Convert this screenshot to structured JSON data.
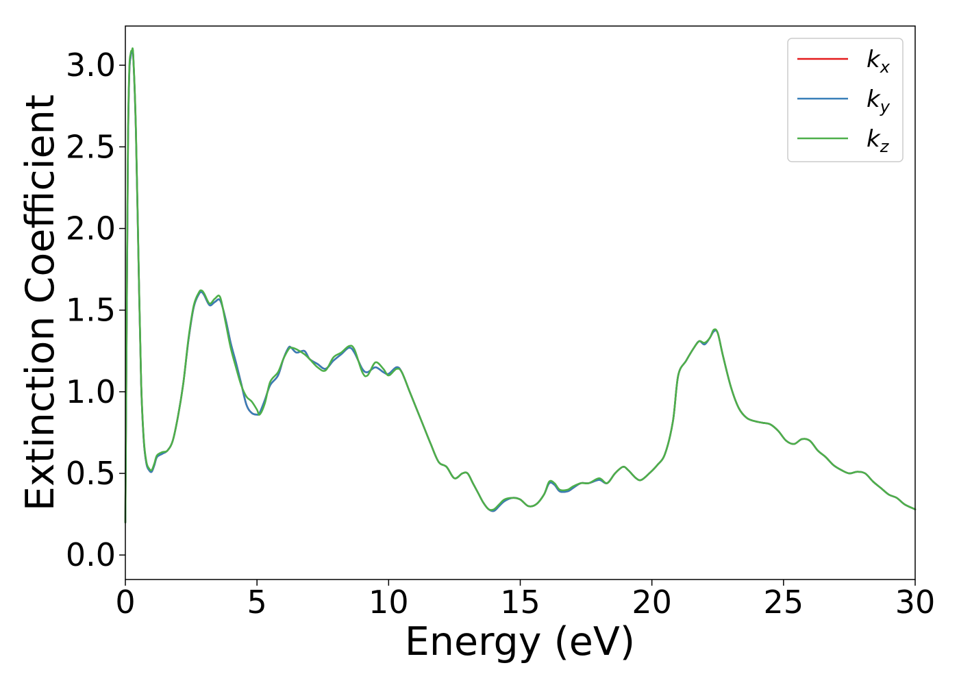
{
  "chart_data": {
    "type": "line",
    "xlabel": "Energy (eV)",
    "ylabel": "Extinction Coefficient",
    "xlim": [
      0,
      30
    ],
    "ylim": [
      -0.15,
      3.24
    ],
    "xticks": [
      0,
      5,
      10,
      15,
      20,
      25,
      30
    ],
    "xtick_labels": [
      "0",
      "5",
      "10",
      "15",
      "20",
      "25",
      "30"
    ],
    "yticks": [
      0.0,
      0.5,
      1.0,
      1.5,
      2.0,
      2.5,
      3.0
    ],
    "ytick_labels": [
      "0.0",
      "0.5",
      "1.0",
      "1.5",
      "2.0",
      "2.5",
      "3.0"
    ],
    "grid": false,
    "legend_position": "top-right",
    "series": [
      {
        "name": "k",
        "subscript": "x",
        "color": "#e41a1c",
        "x": [
          0,
          0.05,
          0.1,
          0.15,
          0.2,
          0.25,
          0.3,
          0.4,
          0.5,
          0.6,
          0.7,
          0.8,
          0.9,
          1.0,
          1.1,
          1.2,
          1.4,
          1.6,
          1.8,
          2.0,
          2.2,
          2.4,
          2.6,
          2.8,
          2.9,
          3.0,
          3.2,
          3.4,
          3.6,
          3.8,
          4.0,
          4.2,
          4.4,
          4.6,
          4.8,
          5.0,
          5.1,
          5.3,
          5.5,
          5.8,
          6.0,
          6.2,
          6.3,
          6.5,
          6.8,
          7.0,
          7.3,
          7.6,
          7.9,
          8.2,
          8.5,
          8.7,
          9.0,
          9.2,
          9.5,
          9.8,
          10.0,
          10.3,
          10.5,
          10.8,
          11.0,
          11.3,
          11.6,
          11.9,
          12.2,
          12.5,
          12.8,
          13.0,
          13.2,
          13.4,
          13.6,
          13.8,
          14.0,
          14.2,
          14.4,
          14.7,
          15.0,
          15.3,
          15.6,
          15.9,
          16.1,
          16.3,
          16.5,
          16.8,
          17.0,
          17.3,
          17.6,
          18.0,
          18.3,
          18.6,
          18.9,
          19.1,
          19.4,
          19.6,
          19.9,
          20.2,
          20.5,
          20.8,
          21.0,
          21.3,
          21.6,
          21.8,
          22.0,
          22.2,
          22.35,
          22.5,
          22.7,
          23.0,
          23.3,
          23.6,
          23.9,
          24.2,
          24.5,
          24.8,
          25.1,
          25.4,
          25.7,
          26.0,
          26.3,
          26.6,
          26.9,
          27.2,
          27.5,
          27.8,
          28.1,
          28.4,
          28.7,
          29.0,
          29.3,
          29.6,
          30.0
        ],
        "y": [
          0.2,
          1.4,
          2.5,
          2.95,
          3.05,
          3.08,
          3.05,
          2.6,
          1.8,
          1.05,
          0.7,
          0.56,
          0.52,
          0.51,
          0.55,
          0.6,
          0.62,
          0.64,
          0.7,
          0.85,
          1.05,
          1.32,
          1.52,
          1.6,
          1.61,
          1.59,
          1.53,
          1.55,
          1.56,
          1.45,
          1.3,
          1.18,
          1.05,
          0.92,
          0.87,
          0.86,
          0.87,
          0.95,
          1.04,
          1.1,
          1.2,
          1.27,
          1.27,
          1.24,
          1.25,
          1.2,
          1.17,
          1.14,
          1.19,
          1.23,
          1.27,
          1.24,
          1.14,
          1.12,
          1.15,
          1.12,
          1.11,
          1.15,
          1.12,
          1.0,
          0.92,
          0.8,
          0.68,
          0.57,
          0.54,
          0.47,
          0.5,
          0.5,
          0.44,
          0.38,
          0.32,
          0.28,
          0.27,
          0.3,
          0.33,
          0.35,
          0.34,
          0.3,
          0.31,
          0.37,
          0.44,
          0.43,
          0.39,
          0.39,
          0.41,
          0.44,
          0.44,
          0.46,
          0.44,
          0.5,
          0.54,
          0.52,
          0.47,
          0.46,
          0.5,
          0.55,
          0.62,
          0.82,
          1.1,
          1.19,
          1.27,
          1.31,
          1.29,
          1.33,
          1.37,
          1.36,
          1.22,
          1.03,
          0.9,
          0.84,
          0.82,
          0.81,
          0.8,
          0.76,
          0.7,
          0.68,
          0.71,
          0.7,
          0.64,
          0.6,
          0.55,
          0.52,
          0.5,
          0.51,
          0.5,
          0.45,
          0.41,
          0.37,
          0.35,
          0.31,
          0.28
        ]
      },
      {
        "name": "k",
        "subscript": "y",
        "color": "#377eb8",
        "x": [
          0,
          0.05,
          0.1,
          0.15,
          0.2,
          0.25,
          0.3,
          0.4,
          0.5,
          0.6,
          0.7,
          0.8,
          0.9,
          1.0,
          1.1,
          1.2,
          1.4,
          1.6,
          1.8,
          2.0,
          2.2,
          2.4,
          2.6,
          2.8,
          2.9,
          3.0,
          3.2,
          3.4,
          3.6,
          3.8,
          4.0,
          4.2,
          4.4,
          4.6,
          4.8,
          5.0,
          5.1,
          5.3,
          5.5,
          5.8,
          6.0,
          6.2,
          6.3,
          6.5,
          6.8,
          7.0,
          7.3,
          7.6,
          7.9,
          8.2,
          8.5,
          8.7,
          9.0,
          9.2,
          9.5,
          9.8,
          10.0,
          10.3,
          10.5,
          10.8,
          11.0,
          11.3,
          11.6,
          11.9,
          12.2,
          12.5,
          12.8,
          13.0,
          13.2,
          13.4,
          13.6,
          13.8,
          14.0,
          14.2,
          14.4,
          14.7,
          15.0,
          15.3,
          15.6,
          15.9,
          16.1,
          16.3,
          16.5,
          16.8,
          17.0,
          17.3,
          17.6,
          18.0,
          18.3,
          18.6,
          18.9,
          19.1,
          19.4,
          19.6,
          19.9,
          20.2,
          20.5,
          20.8,
          21.0,
          21.3,
          21.6,
          21.8,
          22.0,
          22.2,
          22.35,
          22.5,
          22.7,
          23.0,
          23.3,
          23.6,
          23.9,
          24.2,
          24.5,
          24.8,
          25.1,
          25.4,
          25.7,
          26.0,
          26.3,
          26.6,
          26.9,
          27.2,
          27.5,
          27.8,
          28.1,
          28.4,
          28.7,
          29.0,
          29.3,
          29.6,
          30.0
        ],
        "y": [
          0.2,
          1.4,
          2.5,
          2.95,
          3.05,
          3.08,
          3.05,
          2.6,
          1.8,
          1.05,
          0.7,
          0.56,
          0.52,
          0.51,
          0.55,
          0.6,
          0.62,
          0.64,
          0.7,
          0.85,
          1.05,
          1.32,
          1.52,
          1.6,
          1.61,
          1.59,
          1.53,
          1.55,
          1.56,
          1.45,
          1.3,
          1.18,
          1.05,
          0.92,
          0.87,
          0.86,
          0.87,
          0.95,
          1.04,
          1.1,
          1.2,
          1.27,
          1.27,
          1.24,
          1.25,
          1.2,
          1.17,
          1.14,
          1.19,
          1.23,
          1.27,
          1.24,
          1.14,
          1.12,
          1.15,
          1.12,
          1.11,
          1.15,
          1.12,
          1.0,
          0.92,
          0.8,
          0.68,
          0.57,
          0.54,
          0.47,
          0.5,
          0.5,
          0.44,
          0.38,
          0.32,
          0.28,
          0.27,
          0.3,
          0.33,
          0.35,
          0.34,
          0.3,
          0.31,
          0.37,
          0.44,
          0.43,
          0.39,
          0.39,
          0.41,
          0.44,
          0.44,
          0.46,
          0.44,
          0.5,
          0.54,
          0.52,
          0.47,
          0.46,
          0.5,
          0.55,
          0.62,
          0.82,
          1.1,
          1.19,
          1.27,
          1.31,
          1.29,
          1.33,
          1.37,
          1.36,
          1.22,
          1.03,
          0.9,
          0.84,
          0.82,
          0.81,
          0.8,
          0.76,
          0.7,
          0.68,
          0.71,
          0.7,
          0.64,
          0.6,
          0.55,
          0.52,
          0.5,
          0.51,
          0.5,
          0.45,
          0.41,
          0.37,
          0.35,
          0.31,
          0.28
        ]
      },
      {
        "name": "k",
        "subscript": "z",
        "color": "#4daf4a",
        "x": [
          0,
          0.05,
          0.1,
          0.15,
          0.2,
          0.25,
          0.3,
          0.4,
          0.5,
          0.6,
          0.7,
          0.8,
          0.9,
          1.0,
          1.1,
          1.2,
          1.4,
          1.6,
          1.8,
          2.0,
          2.2,
          2.4,
          2.6,
          2.8,
          2.9,
          3.0,
          3.2,
          3.4,
          3.6,
          3.8,
          4.0,
          4.2,
          4.4,
          4.6,
          4.8,
          5.0,
          5.1,
          5.3,
          5.5,
          5.8,
          6.0,
          6.2,
          6.3,
          6.5,
          6.8,
          7.0,
          7.3,
          7.6,
          7.9,
          8.2,
          8.5,
          8.7,
          9.0,
          9.2,
          9.5,
          9.8,
          10.0,
          10.3,
          10.5,
          10.8,
          11.0,
          11.3,
          11.6,
          11.9,
          12.2,
          12.5,
          12.8,
          13.0,
          13.2,
          13.4,
          13.6,
          13.8,
          14.0,
          14.2,
          14.4,
          14.7,
          15.0,
          15.3,
          15.6,
          15.9,
          16.1,
          16.3,
          16.5,
          16.8,
          17.0,
          17.3,
          17.6,
          18.0,
          18.3,
          18.6,
          18.9,
          19.1,
          19.4,
          19.6,
          19.9,
          20.2,
          20.5,
          20.8,
          21.0,
          21.3,
          21.6,
          21.8,
          22.0,
          22.2,
          22.35,
          22.5,
          22.7,
          23.0,
          23.3,
          23.6,
          23.9,
          24.2,
          24.5,
          24.8,
          25.1,
          25.4,
          25.7,
          26.0,
          26.3,
          26.6,
          26.9,
          27.2,
          27.5,
          27.8,
          28.1,
          28.4,
          28.7,
          29.0,
          29.3,
          29.6,
          30.0
        ],
        "y": [
          0.2,
          1.45,
          2.55,
          2.98,
          3.07,
          3.09,
          3.06,
          2.62,
          1.82,
          1.06,
          0.71,
          0.57,
          0.53,
          0.52,
          0.56,
          0.61,
          0.63,
          0.64,
          0.7,
          0.85,
          1.05,
          1.33,
          1.53,
          1.61,
          1.62,
          1.6,
          1.54,
          1.57,
          1.58,
          1.43,
          1.27,
          1.15,
          1.04,
          0.97,
          0.94,
          0.89,
          0.86,
          0.93,
          1.06,
          1.12,
          1.2,
          1.26,
          1.27,
          1.26,
          1.23,
          1.2,
          1.15,
          1.13,
          1.21,
          1.24,
          1.28,
          1.26,
          1.12,
          1.1,
          1.18,
          1.14,
          1.1,
          1.14,
          1.12,
          1.0,
          0.92,
          0.8,
          0.68,
          0.57,
          0.54,
          0.47,
          0.5,
          0.5,
          0.44,
          0.38,
          0.32,
          0.28,
          0.28,
          0.31,
          0.34,
          0.35,
          0.34,
          0.3,
          0.31,
          0.37,
          0.45,
          0.44,
          0.4,
          0.4,
          0.42,
          0.44,
          0.44,
          0.47,
          0.44,
          0.5,
          0.54,
          0.52,
          0.47,
          0.46,
          0.5,
          0.55,
          0.62,
          0.82,
          1.1,
          1.19,
          1.27,
          1.31,
          1.3,
          1.33,
          1.38,
          1.36,
          1.22,
          1.03,
          0.9,
          0.84,
          0.82,
          0.81,
          0.8,
          0.76,
          0.7,
          0.68,
          0.71,
          0.7,
          0.64,
          0.6,
          0.55,
          0.52,
          0.5,
          0.51,
          0.5,
          0.45,
          0.41,
          0.37,
          0.35,
          0.31,
          0.28
        ]
      }
    ]
  }
}
